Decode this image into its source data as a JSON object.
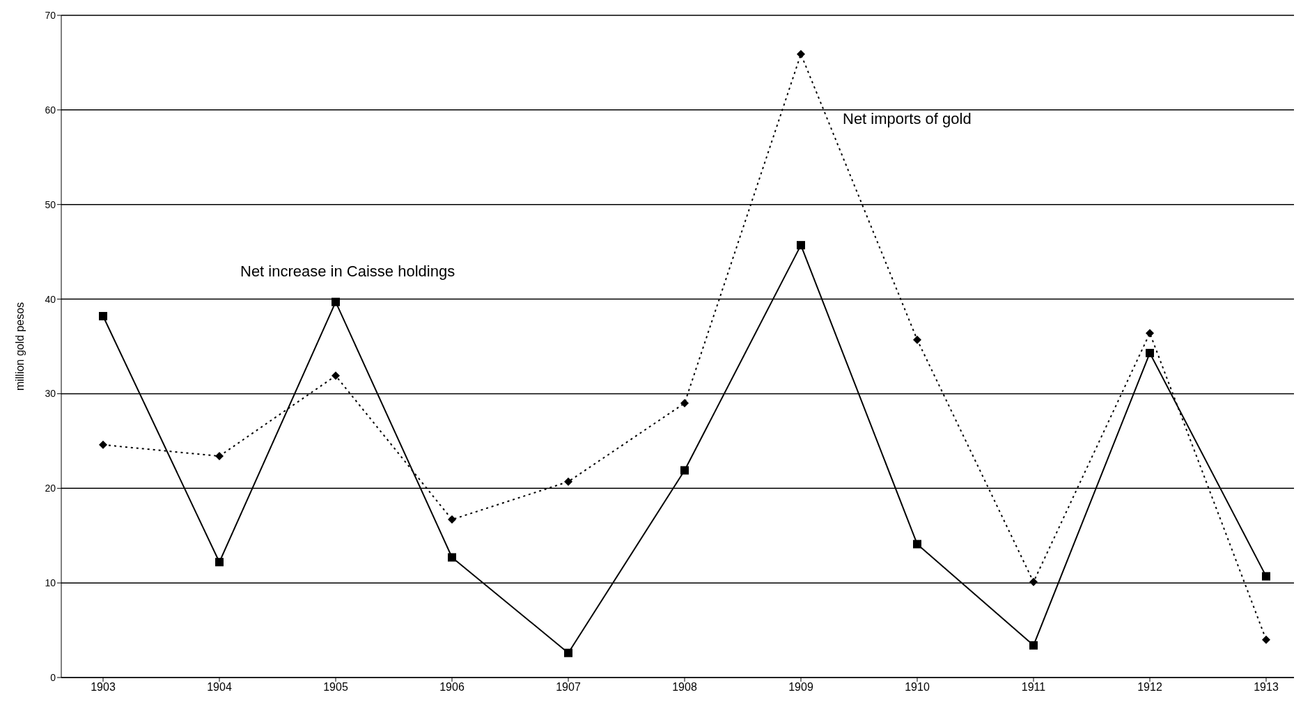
{
  "chart_data": {
    "type": "line",
    "ylabel": "million gold pesos",
    "categories": [
      "1903",
      "1904",
      "1905",
      "1906",
      "1907",
      "1908",
      "1909",
      "1910",
      "1911",
      "1912",
      "1913"
    ],
    "series": [
      {
        "name": "Net increase in Caisse holdings",
        "color": "#000000",
        "marker": "square",
        "line_style": "solid",
        "values": [
          38.2,
          12.2,
          39.7,
          12.7,
          2.6,
          21.9,
          45.7,
          14.1,
          3.4,
          34.3,
          10.7
        ]
      },
      {
        "name": "Net imports of gold",
        "color": "#000000",
        "marker": "diamond",
        "line_style": "dotted",
        "values": [
          24.6,
          23.4,
          31.9,
          16.7,
          20.7,
          29.0,
          65.9,
          35.7,
          10.1,
          36.4,
          4.0
        ]
      }
    ],
    "ylim": [
      0,
      70
    ],
    "yticks": [
      0,
      10,
      20,
      30,
      40,
      50,
      60,
      70
    ],
    "grid": "y",
    "legend": false
  }
}
